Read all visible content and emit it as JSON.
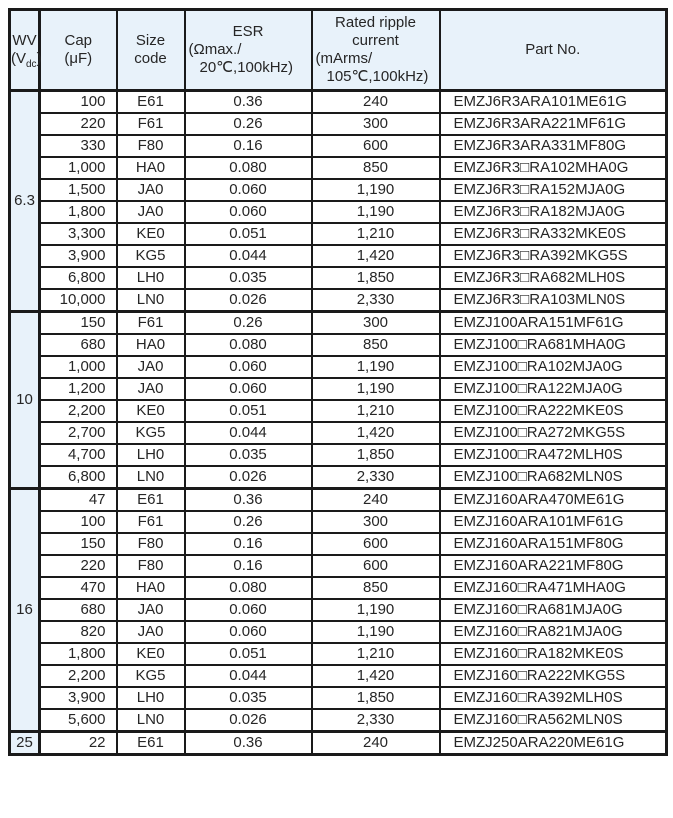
{
  "colors": {
    "header_bg": "#e8f2fa",
    "border": "#1a1a1a",
    "text": "#262626",
    "cell_bg": "#ffffff"
  },
  "header": {
    "wv": {
      "line1": "WV",
      "line2_pre": "(V",
      "line2_sub": "dc",
      "line2_post": ")"
    },
    "cap": {
      "line1": "Cap",
      "line2": "(μF)"
    },
    "size": {
      "line1": "Size",
      "line2": "code"
    },
    "esr": {
      "line1": "ESR",
      "line2": "(Ωmax./",
      "line3": "20℃,100kHz)"
    },
    "ripple": {
      "line1": "Rated ripple",
      "line2": "current",
      "line3": "(mArms/",
      "line4": "105℃,100kHz)"
    },
    "part": "Part No."
  },
  "sections": [
    {
      "wv": "6.3",
      "rows": [
        {
          "cap": "100",
          "size": "E61",
          "esr": "0.36",
          "ripple": "240",
          "part": "EMZJ6R3ARA101ME61G"
        },
        {
          "cap": "220",
          "size": "F61",
          "esr": "0.26",
          "ripple": "300",
          "part": "EMZJ6R3ARA221MF61G"
        },
        {
          "cap": "330",
          "size": "F80",
          "esr": "0.16",
          "ripple": "600",
          "part": "EMZJ6R3ARA331MF80G"
        },
        {
          "cap": "1,000",
          "size": "HA0",
          "esr": "0.080",
          "ripple": "850",
          "part": "EMZJ6R3□RA102MHA0G"
        },
        {
          "cap": "1,500",
          "size": "JA0",
          "esr": "0.060",
          "ripple": "1,190",
          "part": "EMZJ6R3□RA152MJA0G"
        },
        {
          "cap": "1,800",
          "size": "JA0",
          "esr": "0.060",
          "ripple": "1,190",
          "part": "EMZJ6R3□RA182MJA0G"
        },
        {
          "cap": "3,300",
          "size": "KE0",
          "esr": "0.051",
          "ripple": "1,210",
          "part": "EMZJ6R3□RA332MKE0S"
        },
        {
          "cap": "3,900",
          "size": "KG5",
          "esr": "0.044",
          "ripple": "1,420",
          "part": "EMZJ6R3□RA392MKG5S"
        },
        {
          "cap": "6,800",
          "size": "LH0",
          "esr": "0.035",
          "ripple": "1,850",
          "part": "EMZJ6R3□RA682MLH0S"
        },
        {
          "cap": "10,000",
          "size": "LN0",
          "esr": "0.026",
          "ripple": "2,330",
          "part": "EMZJ6R3□RA103MLN0S"
        }
      ]
    },
    {
      "wv": "10",
      "rows": [
        {
          "cap": "150",
          "size": "F61",
          "esr": "0.26",
          "ripple": "300",
          "part": "EMZJ100ARA151MF61G"
        },
        {
          "cap": "680",
          "size": "HA0",
          "esr": "0.080",
          "ripple": "850",
          "part": "EMZJ100□RA681MHA0G"
        },
        {
          "cap": "1,000",
          "size": "JA0",
          "esr": "0.060",
          "ripple": "1,190",
          "part": "EMZJ100□RA102MJA0G"
        },
        {
          "cap": "1,200",
          "size": "JA0",
          "esr": "0.060",
          "ripple": "1,190",
          "part": "EMZJ100□RA122MJA0G"
        },
        {
          "cap": "2,200",
          "size": "KE0",
          "esr": "0.051",
          "ripple": "1,210",
          "part": "EMZJ100□RA222MKE0S"
        },
        {
          "cap": "2,700",
          "size": "KG5",
          "esr": "0.044",
          "ripple": "1,420",
          "part": "EMZJ100□RA272MKG5S"
        },
        {
          "cap": "4,700",
          "size": "LH0",
          "esr": "0.035",
          "ripple": "1,850",
          "part": "EMZJ100□RA472MLH0S"
        },
        {
          "cap": "6,800",
          "size": "LN0",
          "esr": "0.026",
          "ripple": "2,330",
          "part": "EMZJ100□RA682MLN0S"
        }
      ]
    },
    {
      "wv": "16",
      "rows": [
        {
          "cap": "47",
          "size": "E61",
          "esr": "0.36",
          "ripple": "240",
          "part": "EMZJ160ARA470ME61G"
        },
        {
          "cap": "100",
          "size": "F61",
          "esr": "0.26",
          "ripple": "300",
          "part": "EMZJ160ARA101MF61G"
        },
        {
          "cap": "150",
          "size": "F80",
          "esr": "0.16",
          "ripple": "600",
          "part": "EMZJ160ARA151MF80G"
        },
        {
          "cap": "220",
          "size": "F80",
          "esr": "0.16",
          "ripple": "600",
          "part": "EMZJ160ARA221MF80G"
        },
        {
          "cap": "470",
          "size": "HA0",
          "esr": "0.080",
          "ripple": "850",
          "part": "EMZJ160□RA471MHA0G"
        },
        {
          "cap": "680",
          "size": "JA0",
          "esr": "0.060",
          "ripple": "1,190",
          "part": "EMZJ160□RA681MJA0G"
        },
        {
          "cap": "820",
          "size": "JA0",
          "esr": "0.060",
          "ripple": "1,190",
          "part": "EMZJ160□RA821MJA0G"
        },
        {
          "cap": "1,800",
          "size": "KE0",
          "esr": "0.051",
          "ripple": "1,210",
          "part": "EMZJ160□RA182MKE0S"
        },
        {
          "cap": "2,200",
          "size": "KG5",
          "esr": "0.044",
          "ripple": "1,420",
          "part": "EMZJ160□RA222MKG5S"
        },
        {
          "cap": "3,900",
          "size": "LH0",
          "esr": "0.035",
          "ripple": "1,850",
          "part": "EMZJ160□RA392MLH0S"
        },
        {
          "cap": "5,600",
          "size": "LN0",
          "esr": "0.026",
          "ripple": "2,330",
          "part": "EMZJ160□RA562MLN0S"
        }
      ]
    },
    {
      "wv": "25",
      "rows": [
        {
          "cap": "22",
          "size": "E61",
          "esr": "0.36",
          "ripple": "240",
          "part": "EMZJ250ARA220ME61G"
        }
      ]
    }
  ]
}
